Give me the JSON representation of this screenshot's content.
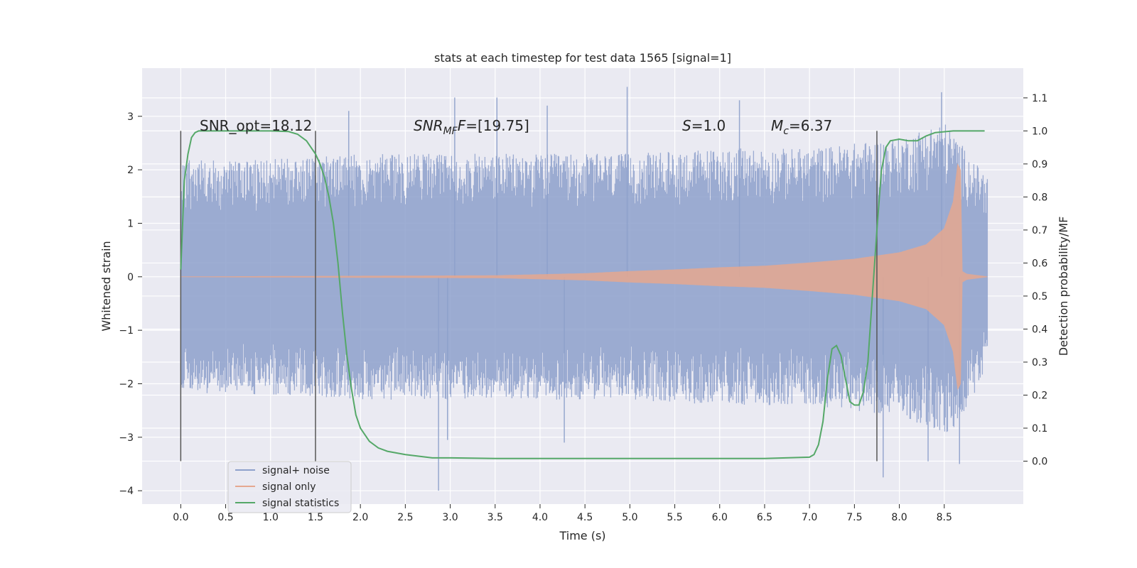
{
  "chart_data": {
    "type": "line",
    "title": "stats at each timestep for test data 1565 [signal=1]",
    "xlabel": "Time (s)",
    "ylabel_left": "Whitened strain",
    "ylabel_right": "Detection probability/MF",
    "xlim": [
      -0.43,
      9.38
    ],
    "ylim_left": [
      -4.25,
      3.9
    ],
    "ylim_right": [
      -0.13,
      1.19
    ],
    "x_ticks": [
      0.0,
      0.5,
      1.0,
      1.5,
      2.0,
      2.5,
      3.0,
      3.5,
      4.0,
      4.5,
      5.0,
      5.5,
      6.0,
      6.5,
      7.0,
      7.5,
      8.0,
      8.5
    ],
    "x_tick_labels": [
      "0.0",
      "0.5",
      "1.0",
      "1.5",
      "2.0",
      "2.5",
      "3.0",
      "3.5",
      "4.0",
      "4.5",
      "5.0",
      "5.5",
      "6.0",
      "6.5",
      "7.0",
      "7.5",
      "8.0",
      "8.5"
    ],
    "y_left_ticks": [
      3,
      2,
      1,
      0,
      -1,
      -2,
      -3,
      -4
    ],
    "y_left_tick_labels": [
      "3",
      "2",
      "1",
      "0",
      "−1",
      "−2",
      "−3",
      "−4"
    ],
    "y_right_ticks": [
      1.1,
      1.0,
      0.9,
      0.8,
      0.7,
      0.6,
      0.5,
      0.4,
      0.3,
      0.2,
      0.1,
      0.0
    ],
    "y_right_tick_labels": [
      "1.1",
      "1.0",
      "0.9",
      "0.8",
      "0.7",
      "0.6",
      "0.5",
      "0.4",
      "0.3",
      "0.2",
      "0.1",
      "0.0"
    ],
    "grid": true,
    "legend_position": "lower-left",
    "series": [
      {
        "name": "signal+ noise",
        "axis": "left",
        "color": "#8da0cb",
        "x_range": [
          0.0,
          8.98
        ],
        "envelope": {
          "x": [
            0.0,
            1.0,
            2.0,
            3.0,
            4.0,
            5.0,
            6.0,
            7.0,
            7.5,
            8.0,
            8.3,
            8.5,
            8.65,
            8.8,
            8.98
          ],
          "typical_max": [
            2.2,
            2.2,
            2.3,
            2.3,
            2.3,
            2.3,
            2.4,
            2.4,
            2.5,
            2.6,
            2.8,
            2.9,
            2.6,
            2.2,
            1.9
          ],
          "typical_min": [
            -2.2,
            -2.2,
            -2.3,
            -2.3,
            -2.3,
            -2.3,
            -2.4,
            -2.4,
            -2.5,
            -2.6,
            -2.8,
            -3.0,
            -2.8,
            -2.3,
            -1.7
          ]
        },
        "peaks": [
          {
            "x": 2.87,
            "y": -4.0
          },
          {
            "x": 3.05,
            "y": 3.35
          },
          {
            "x": 4.97,
            "y": 3.55
          },
          {
            "x": 8.47,
            "y": 3.45
          },
          {
            "x": 8.67,
            "y": -3.5
          },
          {
            "x": 8.32,
            "y": -3.45
          },
          {
            "x": 7.82,
            "y": -3.75
          },
          {
            "x": 3.52,
            "y": 3.35
          },
          {
            "x": 4.08,
            "y": 3.2
          },
          {
            "x": 6.22,
            "y": 3.3
          },
          {
            "x": 1.87,
            "y": 3.1
          },
          {
            "x": 4.27,
            "y": -3.1
          },
          {
            "x": 2.97,
            "y": -3.05
          }
        ]
      },
      {
        "name": "signal only",
        "axis": "left",
        "color": "#e5a890",
        "x_range": [
          0.0,
          8.98
        ],
        "amplitude": {
          "x": [
            0.0,
            3.5,
            4.5,
            5.0,
            5.5,
            6.0,
            6.5,
            7.0,
            7.5,
            8.0,
            8.3,
            8.5,
            8.6,
            8.65,
            8.68,
            8.7,
            8.75,
            8.98
          ],
          "amp": [
            0.0,
            0.02,
            0.06,
            0.1,
            0.13,
            0.17,
            0.2,
            0.26,
            0.33,
            0.45,
            0.6,
            0.9,
            1.4,
            2.1,
            2.0,
            0.1,
            0.05,
            0.0
          ]
        }
      },
      {
        "name": "signal statistics",
        "axis": "right",
        "color": "#55a868",
        "x": [
          0.0,
          0.04,
          0.08,
          0.12,
          0.16,
          0.2,
          0.3,
          0.5,
          1.0,
          1.2,
          1.3,
          1.4,
          1.45,
          1.5,
          1.55,
          1.6,
          1.65,
          1.7,
          1.75,
          1.8,
          1.85,
          1.9,
          1.95,
          2.0,
          2.1,
          2.2,
          2.3,
          2.5,
          2.8,
          3.0,
          3.5,
          4.0,
          4.5,
          5.0,
          5.5,
          6.0,
          6.5,
          7.0,
          7.05,
          7.1,
          7.15,
          7.2,
          7.25,
          7.3,
          7.35,
          7.4,
          7.45,
          7.5,
          7.55,
          7.6,
          7.65,
          7.7,
          7.75,
          7.8,
          7.85,
          7.9,
          8.0,
          8.1,
          8.2,
          8.3,
          8.4,
          8.6,
          8.8,
          8.95
        ],
        "y": [
          0.58,
          0.85,
          0.93,
          0.98,
          0.995,
          1.0,
          1.0,
          1.0,
          1.0,
          0.998,
          0.99,
          0.97,
          0.95,
          0.93,
          0.9,
          0.86,
          0.8,
          0.72,
          0.6,
          0.45,
          0.32,
          0.22,
          0.14,
          0.1,
          0.06,
          0.04,
          0.03,
          0.02,
          0.01,
          0.01,
          0.008,
          0.008,
          0.008,
          0.008,
          0.008,
          0.008,
          0.008,
          0.012,
          0.02,
          0.05,
          0.12,
          0.25,
          0.34,
          0.35,
          0.32,
          0.25,
          0.18,
          0.17,
          0.17,
          0.21,
          0.3,
          0.5,
          0.7,
          0.88,
          0.95,
          0.97,
          0.975,
          0.97,
          0.97,
          0.985,
          0.995,
          1.0,
          1.0,
          1.0
        ]
      }
    ],
    "vertical_lines": [
      {
        "x": 0.0,
        "y_from": 0.0,
        "y_to": 1.0,
        "axis": "right",
        "color": "#555555"
      },
      {
        "x": 1.5,
        "y_from": 0.0,
        "y_to": 1.0,
        "axis": "right",
        "color": "#555555"
      },
      {
        "x": 7.75,
        "y_from": 0.0,
        "y_to": 1.0,
        "axis": "right",
        "color": "#555555"
      }
    ],
    "annotations": {
      "snr_opt": "SNR_opt=18.12",
      "snr_mf_main": "SNR",
      "snr_mf_sub": "MF",
      "snr_mf_value": "=[19.75]",
      "s_main": "S",
      "s_value": "=1.0",
      "mc_main": "M",
      "mc_sub": "c",
      "mc_value": "=6.37"
    }
  }
}
